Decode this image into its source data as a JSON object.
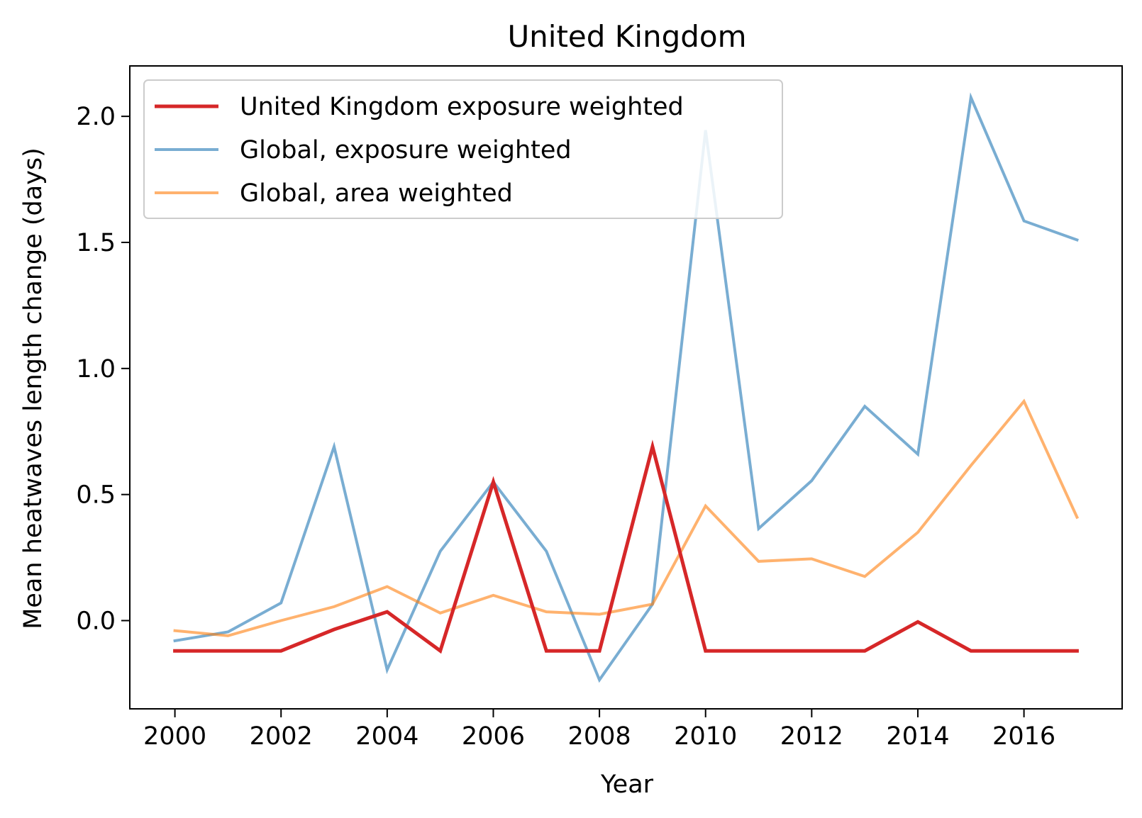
{
  "chart_data": {
    "type": "line",
    "title": "United Kingdom",
    "xlabel": "Year",
    "ylabel": "Mean heatwaves length change (days)",
    "xlim": [
      1999.15,
      2017.85
    ],
    "ylim": [
      -0.35,
      2.2
    ],
    "xticks": [
      2000,
      2002,
      2004,
      2006,
      2008,
      2010,
      2012,
      2014,
      2016
    ],
    "yticks": [
      0.0,
      0.5,
      1.0,
      1.5,
      2.0
    ],
    "xtick_labels": [
      "2000",
      "2002",
      "2004",
      "2006",
      "2008",
      "2010",
      "2012",
      "2014",
      "2016"
    ],
    "ytick_labels": [
      "0.0",
      "0.5",
      "1.0",
      "1.5",
      "2.0"
    ],
    "legend_position": "top-left",
    "grid": false,
    "x": [
      2000,
      2001,
      2002,
      2003,
      2004,
      2005,
      2006,
      2007,
      2008,
      2009,
      2010,
      2011,
      2012,
      2013,
      2014,
      2015,
      2016,
      2017
    ],
    "series": [
      {
        "name": "United Kingdom exposure weighted",
        "color": "#d62728",
        "values": [
          -0.12,
          -0.12,
          -0.12,
          -0.035,
          0.035,
          -0.12,
          0.55,
          -0.12,
          -0.12,
          0.69,
          -0.12,
          -0.12,
          -0.12,
          -0.12,
          -0.005,
          -0.12,
          -0.12,
          -0.12
        ]
      },
      {
        "name": "Global, exposure weighted",
        "color": "#1f77b4",
        "values": [
          -0.08,
          -0.045,
          0.07,
          0.69,
          -0.195,
          0.275,
          0.55,
          0.275,
          -0.235,
          0.065,
          1.945,
          0.365,
          0.555,
          0.85,
          0.66,
          2.075,
          1.585,
          1.51
        ]
      },
      {
        "name": "Global, area weighted",
        "color": "#ff7f0e",
        "values": [
          -0.04,
          -0.06,
          0.0,
          0.055,
          0.135,
          0.03,
          0.1,
          0.035,
          0.025,
          0.065,
          0.455,
          0.235,
          0.245,
          0.175,
          0.35,
          0.615,
          0.87,
          0.41
        ]
      }
    ]
  }
}
